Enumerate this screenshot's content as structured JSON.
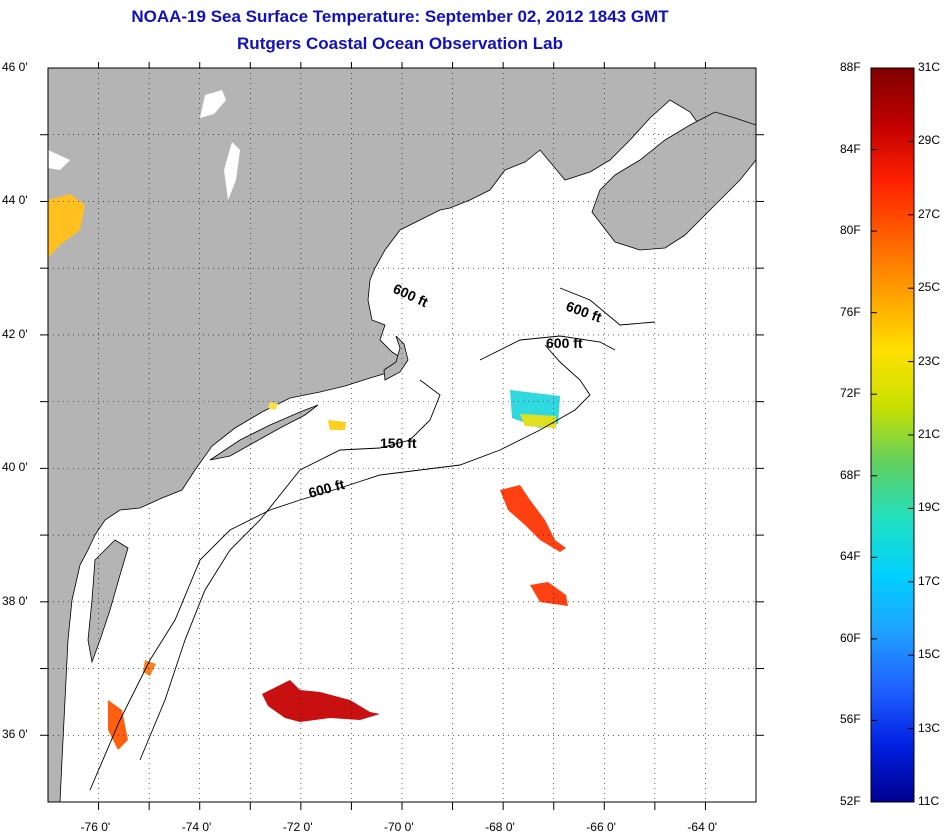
{
  "title": {
    "line1": "NOAA-19 Sea Surface Temperature:  September 02, 2012 1843 GMT",
    "line2": "Rutgers Coastal Ocean Observation Lab"
  },
  "colors": {
    "land": "#b4b4b4",
    "ocean": "#ffffff",
    "title": "#1010c0",
    "coast": "#000000"
  },
  "map": {
    "lon_range": [
      -77,
      -63
    ],
    "lat_range": [
      35,
      46
    ],
    "lat_ticks": [
      {
        "value": 46,
        "label": "46 0'"
      },
      {
        "value": 44,
        "label": "44 0'"
      },
      {
        "value": 42,
        "label": "42 0'"
      },
      {
        "value": 40,
        "label": "40 0'"
      },
      {
        "value": 38,
        "label": "38 0'"
      },
      {
        "value": 36,
        "label": "36 0'"
      }
    ],
    "lon_ticks": [
      {
        "value": -76,
        "label": "-76 0'"
      },
      {
        "value": -74,
        "label": "-74 0'"
      },
      {
        "value": -72,
        "label": "-72 0'"
      },
      {
        "value": -70,
        "label": "-70 0'"
      },
      {
        "value": -68,
        "label": "-68 0'"
      },
      {
        "value": -66,
        "label": "-66 0'"
      },
      {
        "value": -64,
        "label": "-64 0'"
      }
    ],
    "grid": "dotted",
    "depth_labels": [
      "600 ft",
      "600 ft",
      "600 ft",
      "150 ft",
      "600 ft"
    ]
  },
  "colorbar": {
    "f_range": [
      52,
      88
    ],
    "c_range": [
      11,
      31
    ],
    "f_labels": [
      "88F",
      "84F",
      "80F",
      "76F",
      "72F",
      "68F",
      "64F",
      "60F",
      "56F",
      "52F"
    ],
    "c_labels": [
      "31C",
      "29C",
      "27C",
      "25C",
      "23C",
      "21C",
      "19C",
      "17C",
      "15C",
      "13C",
      "11C"
    ],
    "gradient": [
      "#800000",
      "#c00000",
      "#ff2000",
      "#ff6000",
      "#ffa000",
      "#ffe000",
      "#c8e000",
      "#60d060",
      "#20e0c0",
      "#00d0ff",
      "#20a0ff",
      "#2060ff",
      "#0020e0",
      "#000090"
    ]
  }
}
